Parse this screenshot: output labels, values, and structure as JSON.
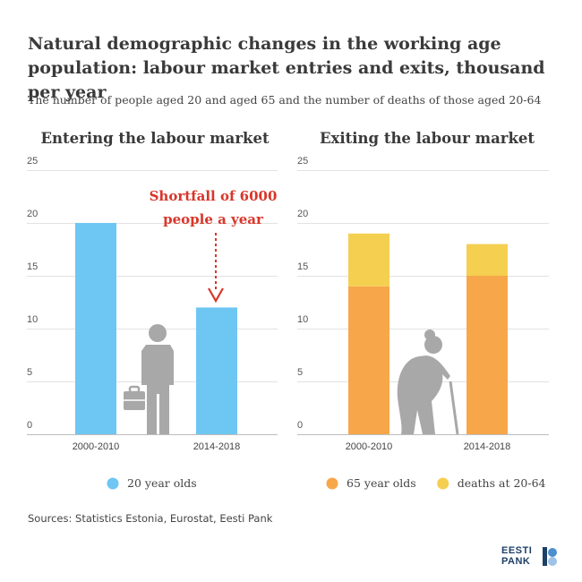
{
  "title": "Natural demographic changes in the working age population: labour market entries and exits, thousand per year",
  "subtitle": "The number of people aged 20 and aged 65 and the number of deaths of those aged 20-64",
  "sources": "Sources: Statistics Estonia, Eurostat, Eesti Pank",
  "logo": {
    "line1": "EESTI",
    "line2": "PANK"
  },
  "annotation": {
    "line1": "Shortfall of 6000",
    "line2": "people a year",
    "color": "#d8362a"
  },
  "chart_data": [
    {
      "type": "bar",
      "title": "Entering the labour market",
      "categories": [
        "2000-2010",
        "2014-2018"
      ],
      "series": [
        {
          "name": "20 year olds",
          "values": [
            20,
            12
          ],
          "color": "#6ec6f2"
        }
      ],
      "yticks": [
        0,
        5,
        10,
        15,
        20,
        25
      ],
      "ylim": [
        0,
        25
      ],
      "grid": true,
      "legend": "bottom",
      "illustration": "businessman-icon"
    },
    {
      "type": "bar",
      "stacked": true,
      "title": "Exiting the labour market",
      "categories": [
        "2000-2010",
        "2014-2018"
      ],
      "series": [
        {
          "name": "65 year olds",
          "values": [
            14,
            15
          ],
          "color": "#f7a74a"
        },
        {
          "name": "deaths at 20-64",
          "values": [
            5,
            3
          ],
          "color": "#f5cf50"
        }
      ],
      "yticks": [
        0,
        5,
        10,
        15,
        20,
        25
      ],
      "ylim": [
        0,
        25
      ],
      "grid": true,
      "legend": "bottom",
      "illustration": "elderly-person-icon"
    }
  ]
}
